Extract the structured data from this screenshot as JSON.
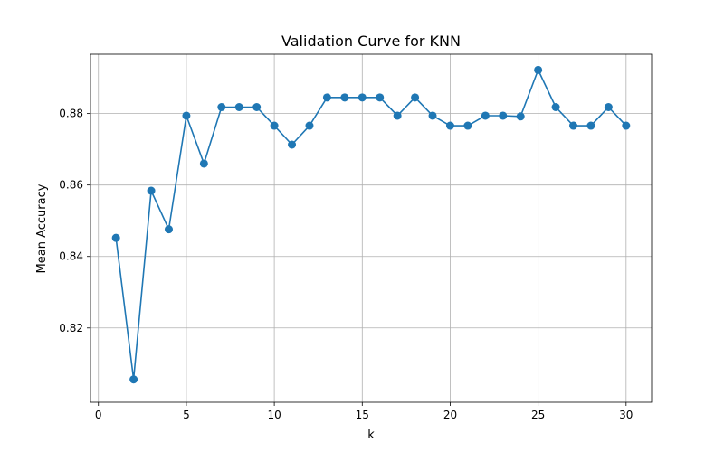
{
  "chart_data": {
    "type": "line",
    "title": "Validation Curve for KNN",
    "xlabel": "k",
    "ylabel": "Mean Accuracy",
    "x": [
      1,
      2,
      3,
      4,
      5,
      6,
      7,
      8,
      9,
      10,
      11,
      12,
      13,
      14,
      15,
      16,
      17,
      18,
      19,
      20,
      21,
      22,
      23,
      24,
      25,
      26,
      27,
      28,
      29,
      30
    ],
    "series": [
      {
        "values": [
          0.8452,
          0.8056,
          0.8584,
          0.8476,
          0.8794,
          0.866,
          0.8818,
          0.8818,
          0.8818,
          0.8766,
          0.8713,
          0.8766,
          0.8845,
          0.8845,
          0.8845,
          0.8845,
          0.8794,
          0.8845,
          0.8794,
          0.8766,
          0.8766,
          0.8794,
          0.8794,
          0.8792,
          0.8922,
          0.8818,
          0.8766,
          0.8766,
          0.8818,
          0.8766
        ]
      }
    ],
    "xlim": [
      -0.45,
      31.45
    ],
    "ylim": [
      0.7992,
      0.8966
    ],
    "xticks": [
      0,
      5,
      10,
      15,
      20,
      25,
      30
    ],
    "xtick_labels": [
      "0",
      "5",
      "10",
      "15",
      "20",
      "25",
      "30"
    ],
    "yticks": [
      0.82,
      0.84,
      0.86,
      0.88
    ],
    "ytick_labels": [
      "0.82",
      "0.84",
      "0.86",
      "0.88"
    ],
    "grid": true,
    "line_color": "#1f77b4",
    "marker": "circle"
  }
}
